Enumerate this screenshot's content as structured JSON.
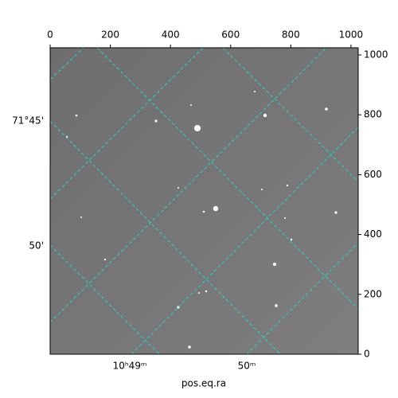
{
  "chart_data": {
    "type": "image",
    "xlabel": "pos.eq.ra",
    "xlim": [
      0,
      1024
    ],
    "xticks": [
      0,
      200,
      400,
      600,
      800,
      1000
    ],
    "ylim": [
      0,
      1024
    ],
    "yticks": [
      0,
      200,
      400,
      600,
      800,
      1000
    ],
    "dec_labels": [
      "71°45'",
      "50'"
    ],
    "ra_labels": [
      "10ʰ49ᵐ",
      "50ᵐ"
    ]
  }
}
